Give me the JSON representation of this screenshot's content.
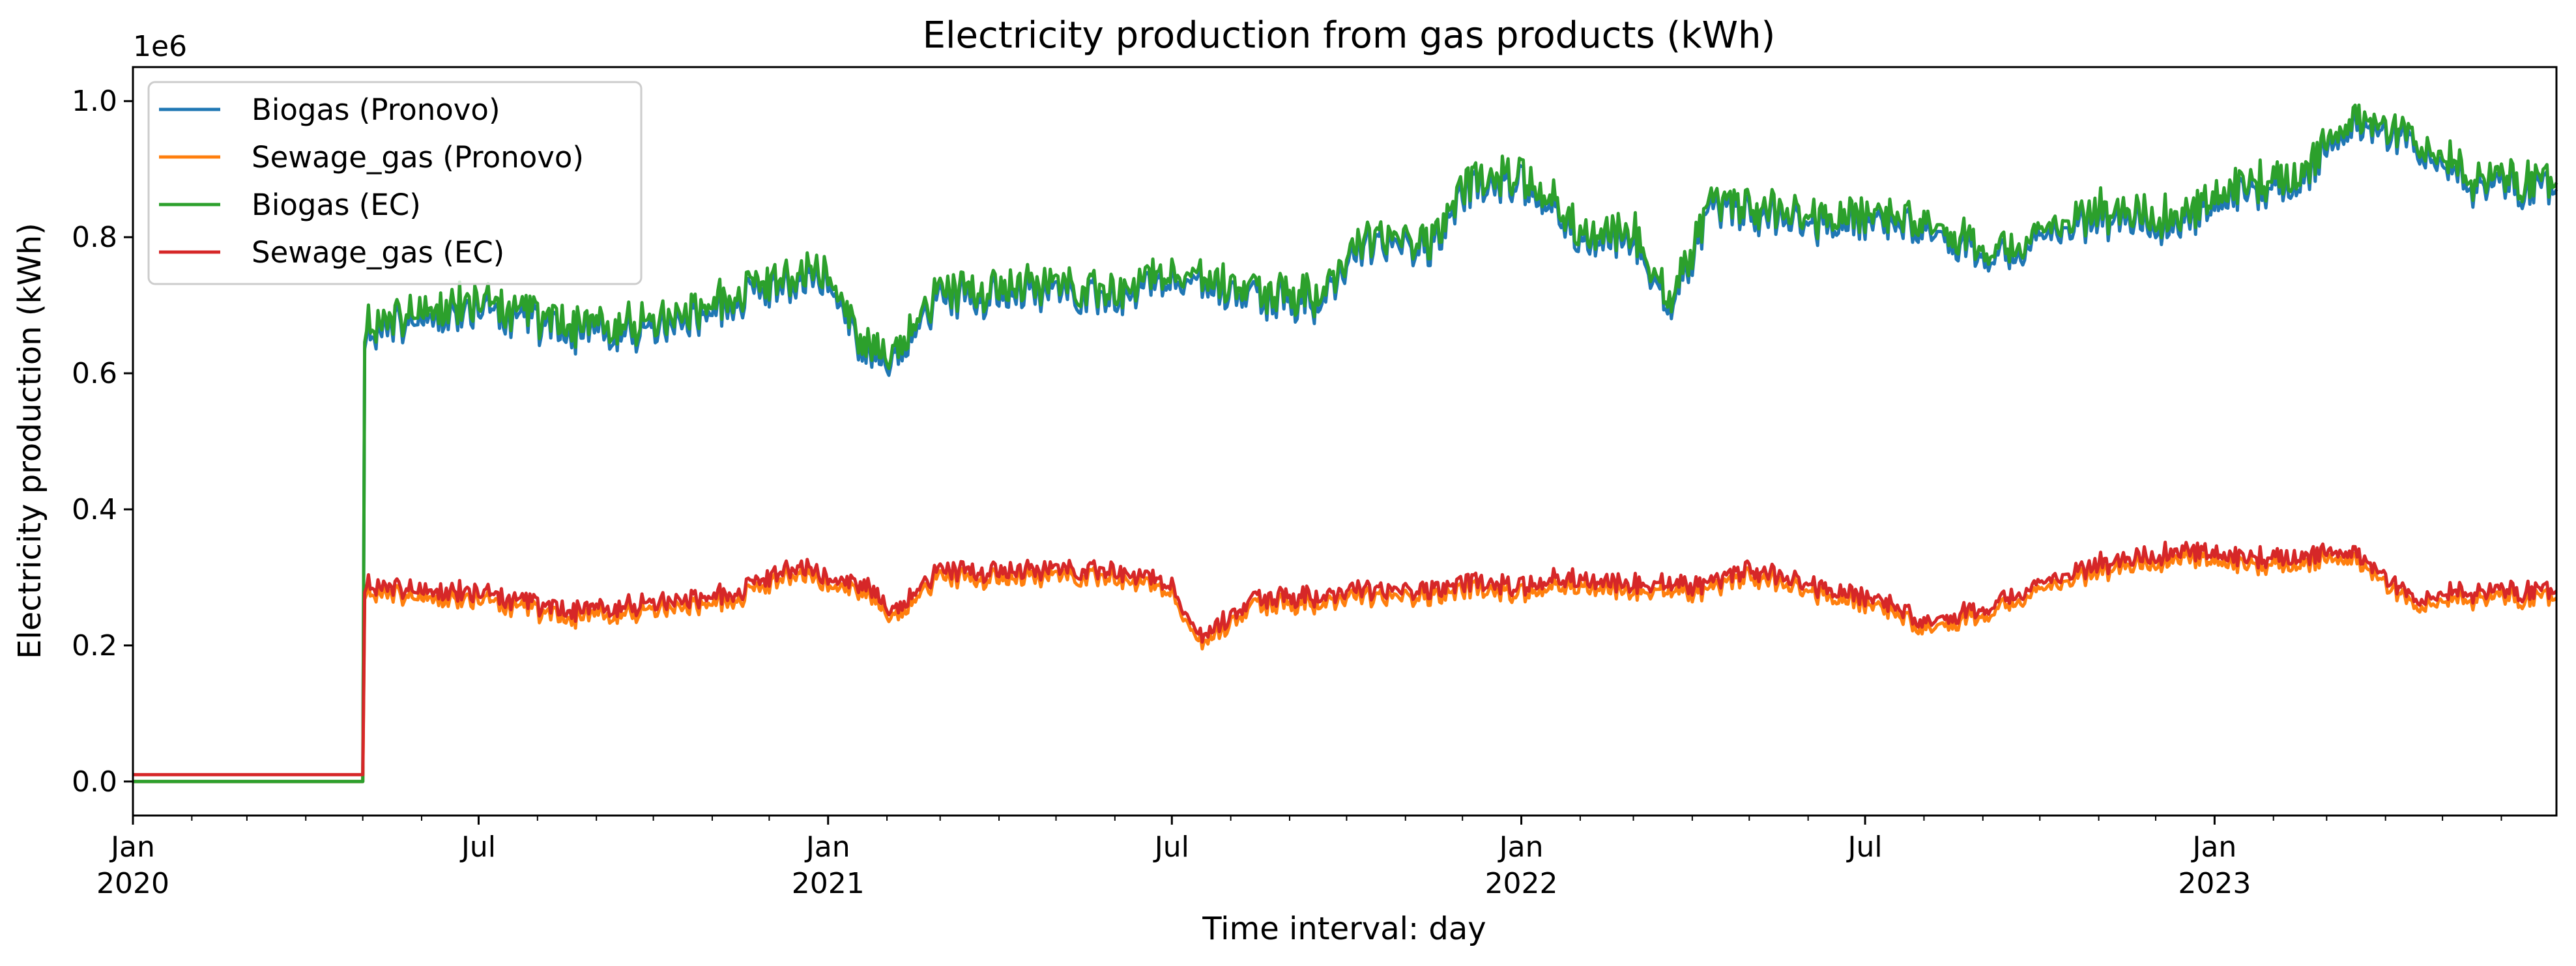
{
  "chart_data": {
    "type": "line",
    "title": "Electricity production from gas products (kWh)",
    "xlabel": "Time interval: day",
    "ylabel": "Electricity production (kWh)",
    "y_offset_label": "1e6",
    "x_range": [
      "2020-01-01",
      "2023-06-30"
    ],
    "ylim": [
      -0.05,
      1.05
    ],
    "y_scale_factor": 1000000,
    "y_ticks": [
      0.0,
      0.2,
      0.4,
      0.6,
      0.8,
      1.0
    ],
    "y_tick_labels": [
      "0.0",
      "0.2",
      "0.4",
      "0.6",
      "0.8",
      "1.0"
    ],
    "x_ticks": [
      {
        "date": "2020-01-01",
        "label": "Jan",
        "sublabel": "2020"
      },
      {
        "date": "2020-07-01",
        "label": "Jul",
        "sublabel": ""
      },
      {
        "date": "2021-01-01",
        "label": "Jan",
        "sublabel": "2021"
      },
      {
        "date": "2021-07-01",
        "label": "Jul",
        "sublabel": ""
      },
      {
        "date": "2022-01-01",
        "label": "Jan",
        "sublabel": "2022"
      },
      {
        "date": "2022-07-01",
        "label": "Jul",
        "sublabel": ""
      },
      {
        "date": "2023-01-01",
        "label": "Jan",
        "sublabel": "2023"
      }
    ],
    "grid": false,
    "legend_position": "top-left",
    "series": [
      {
        "name": "Biogas (Pronovo)",
        "color": "#1f77b4",
        "x": [
          "2020-01-01",
          "2020-05-01",
          "2020-05-02",
          "2020-06-01",
          "2020-07-01",
          "2020-08-15",
          "2020-10-01",
          "2020-11-15",
          "2020-12-15",
          "2021-01-01",
          "2021-01-20",
          "2021-02-05",
          "2021-03-01",
          "2021-04-15",
          "2021-06-01",
          "2021-07-01",
          "2021-08-15",
          "2021-09-15",
          "2021-10-15",
          "2021-11-15",
          "2021-12-01",
          "2021-12-31",
          "2022-02-01",
          "2022-03-01",
          "2022-03-20",
          "2022-04-10",
          "2022-05-01",
          "2022-06-01",
          "2022-07-15",
          "2022-09-15",
          "2022-11-01",
          "2022-12-15",
          "2023-01-15",
          "2023-02-15",
          "2023-03-15",
          "2023-04-15",
          "2023-05-15",
          "2023-06-30"
        ],
        "y": [
          0.0,
          0.0,
          0.66,
          0.68,
          0.7,
          0.66,
          0.66,
          0.71,
          0.74,
          0.74,
          0.63,
          0.62,
          0.71,
          0.72,
          0.71,
          0.74,
          0.71,
          0.7,
          0.79,
          0.78,
          0.86,
          0.89,
          0.8,
          0.8,
          0.69,
          0.84,
          0.83,
          0.82,
          0.82,
          0.77,
          0.83,
          0.82,
          0.87,
          0.88,
          0.97,
          0.94,
          0.88,
          0.87
        ]
      },
      {
        "name": "Sewage_gas (Pronovo)",
        "color": "#ff7f0e",
        "x": [
          "2020-01-01",
          "2020-05-01",
          "2020-05-02",
          "2020-06-01",
          "2020-07-01",
          "2020-08-15",
          "2020-10-01",
          "2020-11-15",
          "2020-12-15",
          "2021-01-01",
          "2021-01-20",
          "2021-02-05",
          "2021-03-01",
          "2021-04-15",
          "2021-06-01",
          "2021-07-01",
          "2021-07-15",
          "2021-08-15",
          "2021-09-15",
          "2021-10-15",
          "2021-11-15",
          "2021-12-01",
          "2021-12-31",
          "2022-02-01",
          "2022-03-01",
          "2022-04-10",
          "2022-05-01",
          "2022-06-01",
          "2022-07-15",
          "2022-08-01",
          "2022-09-15",
          "2022-11-01",
          "2022-12-15",
          "2023-01-15",
          "2023-02-15",
          "2023-03-15",
          "2023-04-15",
          "2023-05-15",
          "2023-06-30"
        ],
        "y": [
          0.0,
          0.0,
          0.28,
          0.27,
          0.27,
          0.24,
          0.25,
          0.27,
          0.31,
          0.29,
          0.28,
          0.24,
          0.3,
          0.3,
          0.3,
          0.28,
          0.2,
          0.26,
          0.26,
          0.27,
          0.27,
          0.28,
          0.28,
          0.29,
          0.28,
          0.28,
          0.3,
          0.28,
          0.25,
          0.22,
          0.26,
          0.31,
          0.33,
          0.32,
          0.32,
          0.33,
          0.26,
          0.27,
          0.27
        ]
      },
      {
        "name": "Biogas (EC)",
        "color": "#2ca02c",
        "x": [
          "2020-01-01",
          "2020-05-01",
          "2020-05-02",
          "2020-06-01",
          "2020-07-01",
          "2020-08-15",
          "2020-10-01",
          "2020-11-15",
          "2020-12-15",
          "2021-01-01",
          "2021-01-20",
          "2021-02-05",
          "2021-03-01",
          "2021-04-15",
          "2021-06-01",
          "2021-07-01",
          "2021-08-15",
          "2021-09-15",
          "2021-10-15",
          "2021-11-15",
          "2021-12-01",
          "2021-12-31",
          "2022-02-01",
          "2022-03-01",
          "2022-03-20",
          "2022-04-10",
          "2022-05-01",
          "2022-06-01",
          "2022-07-15",
          "2022-09-15",
          "2022-11-01",
          "2022-12-15",
          "2023-01-15",
          "2023-02-15",
          "2023-03-15",
          "2023-04-15",
          "2023-05-15",
          "2023-06-30"
        ],
        "y": [
          0.0,
          0.0,
          0.67,
          0.69,
          0.71,
          0.67,
          0.67,
          0.72,
          0.75,
          0.75,
          0.64,
          0.63,
          0.72,
          0.73,
          0.72,
          0.75,
          0.72,
          0.71,
          0.8,
          0.79,
          0.87,
          0.9,
          0.81,
          0.81,
          0.7,
          0.85,
          0.84,
          0.83,
          0.83,
          0.78,
          0.84,
          0.83,
          0.88,
          0.89,
          0.98,
          0.95,
          0.89,
          0.88
        ]
      },
      {
        "name": "Sewage_gas (EC)",
        "color": "#d62728",
        "x": [
          "2020-01-01",
          "2020-05-01",
          "2020-05-02",
          "2020-06-01",
          "2020-07-01",
          "2020-08-15",
          "2020-10-01",
          "2020-11-15",
          "2020-12-15",
          "2021-01-01",
          "2021-01-20",
          "2021-02-05",
          "2021-03-01",
          "2021-04-15",
          "2021-06-01",
          "2021-07-01",
          "2021-07-15",
          "2021-08-15",
          "2021-09-15",
          "2021-10-15",
          "2021-11-15",
          "2021-12-01",
          "2021-12-31",
          "2022-02-01",
          "2022-03-01",
          "2022-04-10",
          "2022-05-01",
          "2022-06-01",
          "2022-07-15",
          "2022-08-01",
          "2022-09-15",
          "2022-11-01",
          "2022-12-15",
          "2023-01-15",
          "2023-02-15",
          "2023-03-15",
          "2023-04-15",
          "2023-05-15",
          "2023-06-30"
        ],
        "y": [
          0.01,
          0.01,
          0.29,
          0.28,
          0.28,
          0.25,
          0.26,
          0.28,
          0.32,
          0.3,
          0.29,
          0.25,
          0.31,
          0.31,
          0.31,
          0.29,
          0.21,
          0.27,
          0.27,
          0.28,
          0.28,
          0.29,
          0.29,
          0.3,
          0.29,
          0.29,
          0.31,
          0.29,
          0.26,
          0.23,
          0.27,
          0.32,
          0.34,
          0.33,
          0.33,
          0.34,
          0.27,
          0.28,
          0.28
        ]
      }
    ]
  }
}
